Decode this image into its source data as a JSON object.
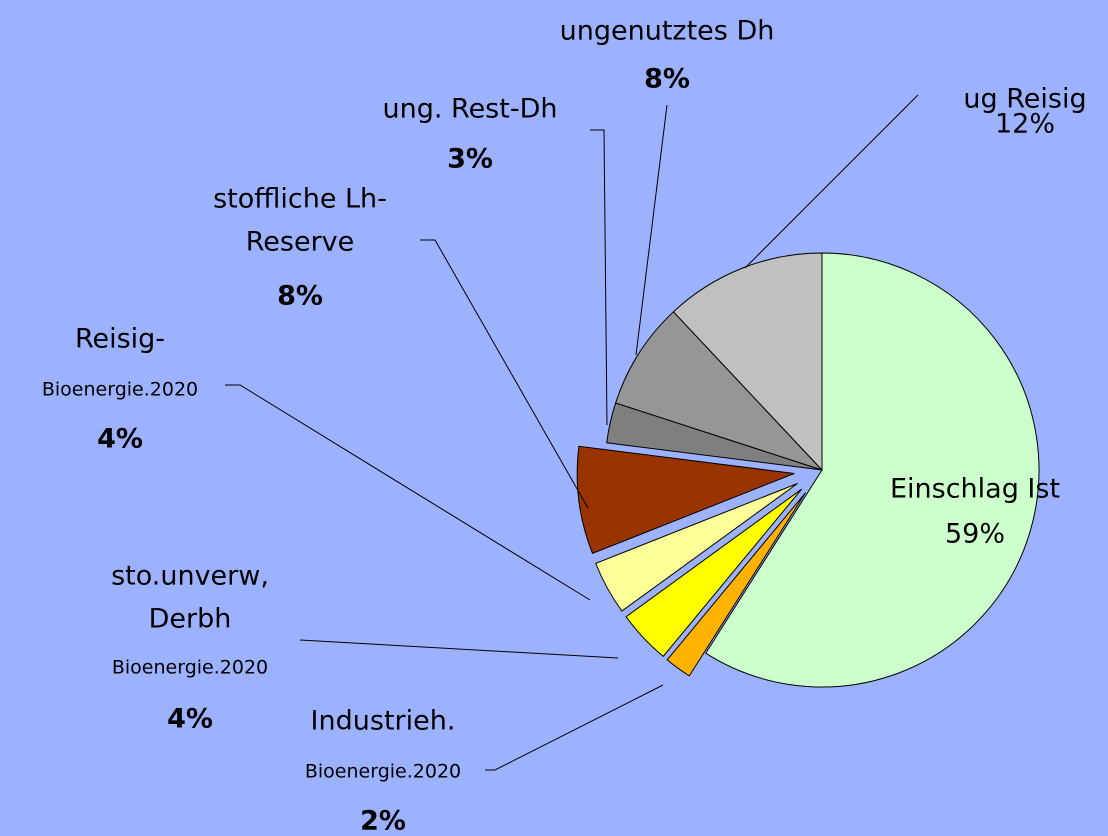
{
  "chart_data": {
    "type": "pie",
    "categories": [
      [
        "Einschlag Ist"
      ],
      [
        "Industrieh.",
        "Bioenergie.2020"
      ],
      [
        "sto.unverw,",
        "Derbh",
        "Bioenergie.2020"
      ],
      [
        "Reisig-",
        "Bioenergie.2020"
      ],
      [
        "stoffliche Lh-",
        "Reserve"
      ],
      [
        "ung. Rest-Dh"
      ],
      [
        "ungenutztes Dh"
      ],
      [
        "ug Reisig"
      ]
    ],
    "values": [
      59,
      2,
      4,
      4,
      8,
      3,
      8,
      12
    ],
    "value_labels": [
      "59%",
      "2%",
      "4%",
      "4%",
      "8%",
      "3%",
      "8%",
      "12%"
    ],
    "colors": [
      "#ccffcc",
      "#ffb300",
      "#ffff00",
      "#ffff99",
      "#993300",
      "#7f7f7f",
      "#969696",
      "#c0c0c0"
    ]
  }
}
